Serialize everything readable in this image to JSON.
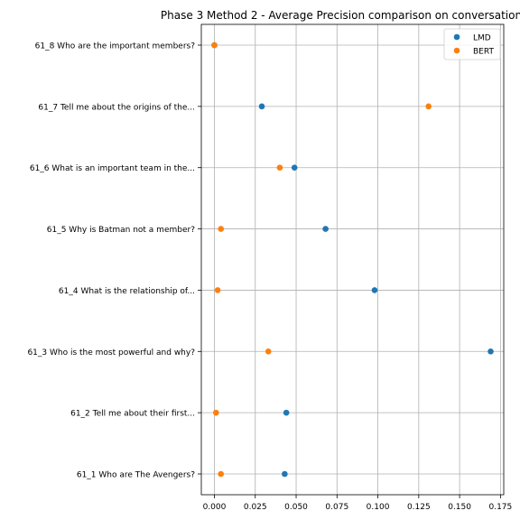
{
  "chart_data": {
    "type": "scatter",
    "title": "Phase 3 Method 2 - Average Precision comparison on conversation",
    "xlabel": "",
    "ylabel": "",
    "xlim": [
      -0.008,
      0.177
    ],
    "xticks": [
      0.0,
      0.025,
      0.05,
      0.075,
      0.1,
      0.125,
      0.15,
      0.175
    ],
    "xtick_labels": [
      "0.000",
      "0.025",
      "0.050",
      "0.075",
      "0.100",
      "0.125",
      "0.150",
      "0.175"
    ],
    "categories": [
      "61_1 Who are The Avengers?",
      "61_2 Tell me about their first...",
      "61_3 Who is the most powerful and why?",
      "61_4 What is the relationship of...",
      "61_5 Why is Batman not a member?",
      "61_6 What is an important team in the...",
      "61_7 Tell me about the origins of the...",
      "61_8 Who are the important members?"
    ],
    "series": [
      {
        "name": "LMD",
        "color": "#1f77b4",
        "values": [
          0.043,
          0.044,
          0.169,
          0.098,
          0.068,
          0.049,
          0.029,
          0.0
        ]
      },
      {
        "name": "BERT",
        "color": "#ff7f0e",
        "values": [
          0.004,
          0.001,
          0.033,
          0.002,
          0.004,
          0.04,
          0.131,
          0.0
        ]
      }
    ],
    "grid": true,
    "legend_position": "top-right"
  }
}
